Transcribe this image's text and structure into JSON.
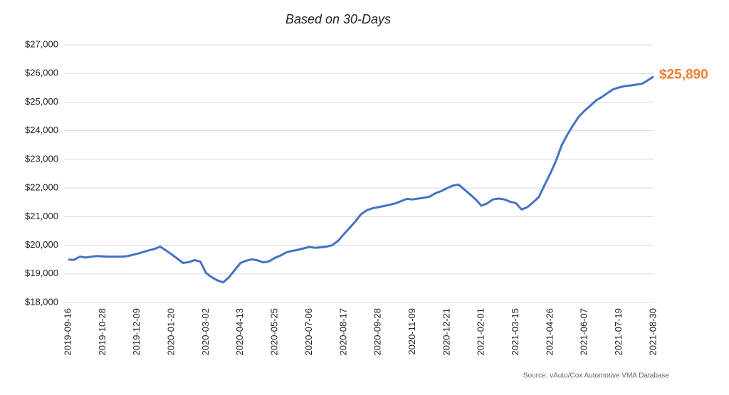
{
  "chart_data": {
    "type": "line",
    "title": "Based on 30-Days",
    "source": "Source: vAuto/Cox Automotive VMA Database",
    "categories": [
      "2019-09-16",
      null,
      null,
      null,
      null,
      null,
      "2019-10-28",
      null,
      null,
      null,
      null,
      null,
      "2019-12-09",
      null,
      null,
      null,
      null,
      null,
      "2020-01-20",
      null,
      null,
      null,
      null,
      null,
      "2020-03-02",
      null,
      null,
      null,
      null,
      null,
      "2020-04-13",
      null,
      null,
      null,
      null,
      null,
      "2020-05-25",
      null,
      null,
      null,
      null,
      null,
      "2020-07-06",
      null,
      null,
      null,
      null,
      null,
      "2020-08-17",
      null,
      null,
      null,
      null,
      null,
      "2020-09-28",
      null,
      null,
      null,
      null,
      null,
      "2020-11-09",
      null,
      null,
      null,
      null,
      null,
      "2020-12-21",
      null,
      null,
      null,
      null,
      null,
      "2021-02-01",
      null,
      null,
      null,
      null,
      null,
      "2021-03-15",
      null,
      null,
      null,
      null,
      null,
      "2021-04-26",
      null,
      null,
      null,
      null,
      null,
      "2021-06-07",
      null,
      null,
      null,
      null,
      null,
      "2021-07-19",
      null,
      null,
      null,
      null,
      null,
      "2021-08-30"
    ],
    "values": [
      19500,
      19490,
      19600,
      19570,
      19600,
      19620,
      19610,
      19600,
      19600,
      19600,
      19610,
      19650,
      19700,
      19760,
      19820,
      19870,
      19950,
      19820,
      19680,
      19530,
      19380,
      19410,
      19480,
      19430,
      19030,
      18880,
      18770,
      18700,
      18880,
      19130,
      19380,
      19460,
      19510,
      19470,
      19400,
      19440,
      19560,
      19640,
      19750,
      19800,
      19840,
      19890,
      19940,
      19910,
      19930,
      19950,
      20000,
      20150,
      20380,
      20600,
      20820,
      21080,
      21220,
      21290,
      21330,
      21370,
      21410,
      21460,
      21540,
      21620,
      21600,
      21630,
      21660,
      21700,
      21820,
      21890,
      21990,
      22080,
      22120,
      21950,
      21780,
      21600,
      21380,
      21460,
      21600,
      21630,
      21600,
      21520,
      21470,
      21250,
      21330,
      21500,
      21680,
      22100,
      22500,
      22950,
      23500,
      23870,
      24200,
      24500,
      24700,
      24880,
      25060,
      25180,
      25320,
      25450,
      25510,
      25560,
      25580,
      25610,
      25640,
      25760,
      25890
    ],
    "value_labels": [
      null,
      null,
      null,
      null,
      null,
      null,
      null,
      null,
      null,
      null,
      null,
      null,
      null,
      null,
      null,
      null,
      null,
      null,
      null,
      null,
      null,
      null,
      null,
      null,
      null,
      null,
      null,
      null,
      null,
      null,
      null,
      null,
      null,
      null,
      null,
      null,
      null,
      null,
      null,
      null,
      null,
      null,
      null,
      null,
      null,
      null,
      null,
      null,
      null,
      null,
      null,
      null,
      null,
      null,
      null,
      null,
      null,
      null,
      null,
      null,
      null,
      null,
      null,
      null,
      null,
      null,
      null,
      null,
      null,
      null,
      null,
      null,
      null,
      null,
      null,
      null,
      null,
      null,
      null,
      null,
      null,
      null,
      null,
      null,
      null,
      null,
      null,
      null,
      null,
      null,
      null,
      null,
      null,
      null,
      null,
      null,
      null,
      null,
      null,
      null,
      null,
      null,
      "$25,890"
    ],
    "color": "#4472c4",
    "label_color": "#ed7d31",
    "ylim": [
      18000,
      27000
    ],
    "yticks": [
      {
        "value": 18000,
        "label": "$18,000"
      },
      {
        "value": 19000,
        "label": "$19,000"
      },
      {
        "value": 20000,
        "label": "$20,000"
      },
      {
        "value": 21000,
        "label": "$21,000"
      },
      {
        "value": 22000,
        "label": "$22,000"
      },
      {
        "value": 23000,
        "label": "$23,000"
      },
      {
        "value": 24000,
        "label": "$24,000"
      },
      {
        "value": 25000,
        "label": "$25,000"
      },
      {
        "value": 26000,
        "label": "$26,000"
      },
      {
        "value": 27000,
        "label": "$27,000"
      }
    ],
    "grid": true
  }
}
